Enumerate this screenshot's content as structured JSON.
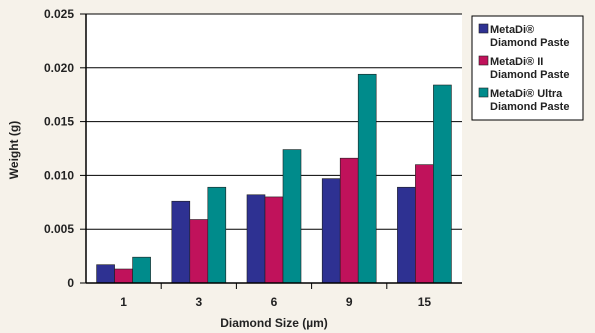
{
  "chart_data": {
    "type": "bar",
    "title": "",
    "xlabel": "Diamond Size (µm)",
    "ylabel": "Weight (g)",
    "categories": [
      "1",
      "3",
      "6",
      "9",
      "15"
    ],
    "ylim": [
      0,
      0.025
    ],
    "yticks": [
      "0",
      "0.005",
      "0.010",
      "0.015",
      "0.020",
      "0.025"
    ],
    "grid": "horizontal",
    "legend_position": "right",
    "series": [
      {
        "name": "MetaDi® Diamond Paste",
        "legend_lines": [
          "MetaDi®",
          "Diamond Paste"
        ],
        "color": "#2e3192",
        "values": [
          0.0017,
          0.0076,
          0.0082,
          0.0097,
          0.0089
        ]
      },
      {
        "name": "MetaDi® II Diamond Paste",
        "legend_lines": [
          "MetaDi® II",
          "Diamond Paste"
        ],
        "color": "#c0125b",
        "values": [
          0.0013,
          0.0059,
          0.008,
          0.0116,
          0.011
        ]
      },
      {
        "name": "MetaDi® Ultra Diamond Paste",
        "legend_lines": [
          "MetaDi® Ultra",
          "Diamond Paste"
        ],
        "color": "#008b8b",
        "values": [
          0.0024,
          0.0089,
          0.0124,
          0.0194,
          0.0184
        ]
      }
    ]
  }
}
